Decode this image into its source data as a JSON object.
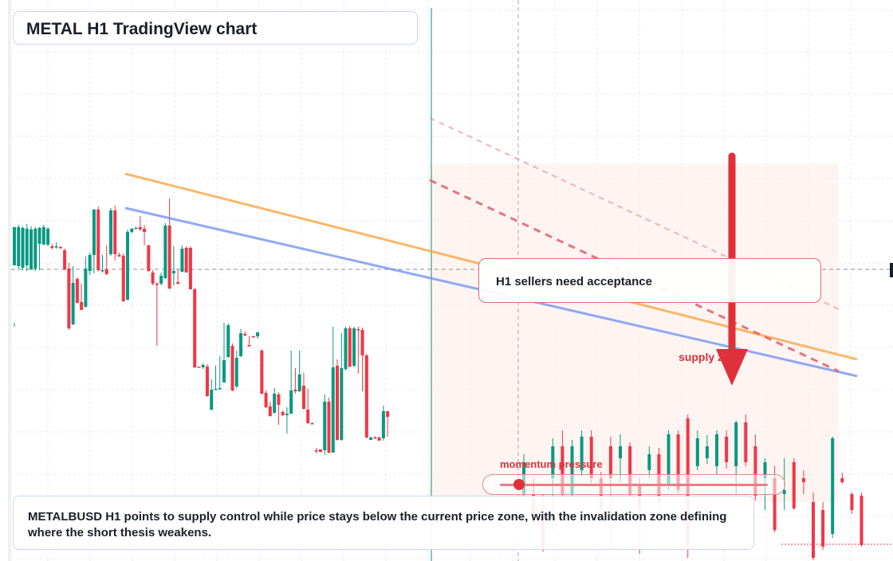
{
  "title": "METAL H1 TradingView chart",
  "callout": {
    "text": "H1 sellers need acceptance"
  },
  "labels": {
    "supply_zone": "supply zone",
    "momentum": "momentum pressure"
  },
  "momentum_level": 0.07,
  "summary": "METALBUSD H1 points to supply control while price stays below the current price zone, with the invalidation zone defining where the short thesis weakens.",
  "colors": {
    "up": "#089981",
    "down": "#f23645",
    "bearish_accent": "#e0303a",
    "channel_line": "#f5a23a",
    "trend_line": "#6c8ef0"
  },
  "icons": {
    "arrow": "arrow-down-icon"
  },
  "chart_data": {
    "type": "candlestick",
    "candles": [
      [
        333,
        285,
        405,
        410
      ],
      [
        334,
        285,
        338,
        282
      ],
      [
        336,
        286,
        339,
        284
      ],
      [
        333,
        287,
        340,
        281
      ],
      [
        338,
        288,
        339,
        284
      ],
      [
        337,
        287,
        340,
        285
      ],
      [
        306,
        286,
        339,
        285
      ],
      [
        307,
        285,
        307,
        282
      ],
      [
        307,
        287,
        309,
        285
      ],
      [
        309,
        311,
        313,
        306
      ],
      [
        310,
        309,
        312,
        304
      ],
      [
        310,
        310,
        312,
        309
      ],
      [
        314,
        338,
        339,
        312
      ],
      [
        337,
        412,
        414,
        330
      ],
      [
        407,
        355,
        408,
        334
      ],
      [
        350,
        380,
        381,
        348
      ],
      [
        379,
        389,
        389,
        356
      ],
      [
        385,
        337,
        386,
        322
      ],
      [
        340,
        320,
        345,
        317
      ],
      [
        320,
        263,
        343,
        262
      ],
      [
        263,
        339,
        341,
        259
      ],
      [
        340,
        339,
        342,
        320
      ],
      [
        338,
        344,
        345,
        308
      ],
      [
        319,
        264,
        321,
        261
      ],
      [
        264,
        319,
        327,
        258
      ],
      [
        320,
        322,
        322,
        317
      ],
      [
        321,
        378,
        379,
        318
      ],
      [
        376,
        291,
        377,
        288
      ],
      [
        291,
        287,
        293,
        286
      ],
      [
        287,
        286,
        287,
        284
      ],
      [
        285,
        288,
        290,
        271
      ],
      [
        287,
        291,
        308,
        283
      ],
      [
        308,
        340,
        341,
        307
      ],
      [
        342,
        356,
        358,
        339
      ],
      [
        356,
        356,
        434,
        354
      ],
      [
        356,
        346,
        358,
        342
      ],
      [
        349,
        283,
        350,
        280
      ],
      [
        283,
        362,
        363,
        249
      ],
      [
        343,
        340,
        358,
        309
      ],
      [
        354,
        356,
        357,
        338
      ],
      [
        341,
        312,
        342,
        308
      ],
      [
        311,
        342,
        342,
        309
      ],
      [
        311,
        363,
        363,
        309
      ],
      [
        363,
        461,
        462,
        361
      ],
      [
        460,
        461,
        461,
        460
      ],
      [
        461,
        458,
        463,
        456
      ],
      [
        460,
        497,
        498,
        457
      ],
      [
        514,
        489,
        515,
        476
      ],
      [
        489,
        488,
        489,
        459
      ],
      [
        488,
        487,
        489,
        447
      ],
      [
        480,
        452,
        480,
        405
      ],
      [
        448,
        408,
        449,
        406
      ],
      [
        434,
        490,
        491,
        431
      ],
      [
        485,
        449,
        487,
        440
      ],
      [
        447,
        418,
        448,
        413
      ],
      [
        419,
        421,
        422,
        416
      ],
      [
        433,
        434,
        435,
        422
      ],
      [
        422,
        423,
        423,
        421
      ],
      [
        422,
        417,
        425,
        418
      ],
      [
        440,
        494,
        495,
        438
      ],
      [
        493,
        511,
        512,
        490
      ],
      [
        510,
        522,
        523,
        504
      ],
      [
        518,
        494,
        519,
        487
      ],
      [
        495,
        508,
        533,
        492
      ],
      [
        517,
        521,
        522,
        515
      ],
      [
        521,
        519,
        544,
        511
      ],
      [
        519,
        490,
        520,
        440
      ],
      [
        489,
        491,
        494,
        462
      ],
      [
        491,
        470,
        492,
        440
      ],
      [
        484,
        513,
        514,
        468
      ],
      [
        514,
        531,
        532,
        488
      ],
      [
        531,
        531,
        532,
        530
      ],
      [
        565,
        565,
        569,
        562
      ],
      [
        564,
        567,
        568,
        564
      ],
      [
        565,
        504,
        571,
        495
      ],
      [
        504,
        568,
        569,
        499
      ],
      [
        568,
        461,
        469,
        410
      ],
      [
        459,
        552,
        553,
        451
      ],
      [
        552,
        462,
        553,
        418
      ],
      [
        463,
        412,
        465,
        410
      ],
      [
        412,
        460,
        461,
        409
      ],
      [
        459,
        412,
        461,
        410
      ],
      [
        413,
        414,
        469,
        410
      ],
      [
        414,
        446,
        491,
        411
      ],
      [
        446,
        549,
        550,
        444
      ],
      [
        552,
        549,
        552,
        548
      ],
      [
        549,
        550,
        550,
        547
      ],
      [
        549,
        553,
        553,
        548
      ],
      [
        550,
        516,
        553,
        509
      ],
      [
        516,
        523,
        548,
        516
      ]
    ],
    "price_axis": "not shown"
  }
}
